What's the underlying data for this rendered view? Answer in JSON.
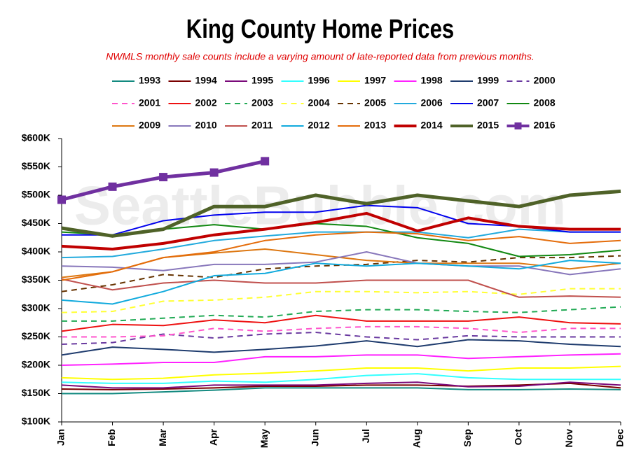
{
  "chart_data": {
    "type": "line",
    "title": "King County Home Prices",
    "subtitle": "NWMLS monthly sale counts include a varying amount of late-reported  data from previous months.",
    "watermark": "SeattleBubble.com",
    "categories": [
      "Jan",
      "Feb",
      "Mar",
      "Apr",
      "May",
      "Jun",
      "Jul",
      "Aug",
      "Sep",
      "Oct",
      "Nov",
      "Dec"
    ],
    "ylim": [
      100000,
      600000
    ],
    "yticks": [
      {
        "value": 100000,
        "label": "$100K"
      },
      {
        "value": 150000,
        "label": "$150K"
      },
      {
        "value": 200000,
        "label": "$200K"
      },
      {
        "value": 250000,
        "label": "$250K"
      },
      {
        "value": 300000,
        "label": "$300K"
      },
      {
        "value": 350000,
        "label": "$350K"
      },
      {
        "value": 400000,
        "label": "$400K"
      },
      {
        "value": 450000,
        "label": "$450K"
      },
      {
        "value": 500000,
        "label": "$500K"
      },
      {
        "value": 550000,
        "label": "$550K"
      },
      {
        "value": 600000,
        "label": "$600K"
      }
    ],
    "series": [
      {
        "name": "1993",
        "color": "#138a80",
        "values": [
          150000,
          150000,
          153000,
          156000,
          160000,
          160000,
          160000,
          160000,
          157000,
          157000,
          158000,
          157000
        ]
      },
      {
        "name": "1994",
        "color": "#7a0000",
        "values": [
          158000,
          157000,
          158000,
          160000,
          163000,
          163000,
          165000,
          165000,
          163000,
          165000,
          168000,
          160000
        ]
      },
      {
        "name": "1995",
        "color": "#7a0a7a",
        "values": [
          165000,
          160000,
          160000,
          165000,
          165000,
          165000,
          168000,
          170000,
          162000,
          163000,
          170000,
          165000
        ]
      },
      {
        "name": "1996",
        "color": "#33ffff",
        "values": [
          170000,
          168000,
          168000,
          172000,
          170000,
          175000,
          182000,
          185000,
          178000,
          175000,
          175000,
          175000
        ]
      },
      {
        "name": "1997",
        "color": "#ffff00",
        "values": [
          178000,
          175000,
          177000,
          183000,
          186000,
          190000,
          195000,
          195000,
          190000,
          195000,
          195000,
          198000
        ]
      },
      {
        "name": "1998",
        "color": "#ff22ff",
        "values": [
          200000,
          202000,
          205000,
          205000,
          215000,
          215000,
          218000,
          218000,
          212000,
          215000,
          218000,
          220000
        ]
      },
      {
        "name": "1999",
        "color": "#1f3c6e",
        "values": [
          218000,
          232000,
          228000,
          223000,
          228000,
          234000,
          243000,
          233000,
          245000,
          243000,
          237000,
          233000
        ]
      },
      {
        "name": "2000",
        "color": "#6a3aa0",
        "dashed": true,
        "values": [
          237000,
          240000,
          255000,
          248000,
          255000,
          258000,
          250000,
          245000,
          252000,
          250000,
          250000,
          250000
        ]
      },
      {
        "name": "2001",
        "color": "#ff55cc",
        "dashed": true,
        "values": [
          250000,
          250000,
          252000,
          265000,
          260000,
          265000,
          268000,
          268000,
          265000,
          258000,
          265000,
          265000
        ]
      },
      {
        "name": "2002",
        "color": "#ee1111",
        "values": [
          260000,
          272000,
          270000,
          280000,
          275000,
          288000,
          278000,
          278000,
          278000,
          285000,
          275000,
          273000
        ]
      },
      {
        "name": "2003",
        "color": "#22aa55",
        "dashed": true,
        "values": [
          278000,
          278000,
          283000,
          288000,
          285000,
          295000,
          298000,
          298000,
          295000,
          293000,
          298000,
          303000
        ]
      },
      {
        "name": "2004",
        "color": "#ffff33",
        "dashed": true,
        "values": [
          293000,
          295000,
          313000,
          315000,
          320000,
          330000,
          330000,
          328000,
          330000,
          325000,
          335000,
          335000
        ]
      },
      {
        "name": "2005",
        "color": "#663300",
        "dashed": true,
        "values": [
          330000,
          342000,
          360000,
          355000,
          370000,
          375000,
          378000,
          385000,
          382000,
          390000,
          390000,
          393000
        ]
      },
      {
        "name": "2006",
        "color": "#22aadd",
        "values": [
          390000,
          392000,
          405000,
          420000,
          428000,
          435000,
          435000,
          435000,
          425000,
          440000,
          435000,
          435000
        ]
      },
      {
        "name": "2007",
        "color": "#0000ee",
        "values": [
          430000,
          430000,
          455000,
          465000,
          470000,
          470000,
          482000,
          478000,
          450000,
          445000,
          435000,
          435000
        ]
      },
      {
        "name": "2008",
        "color": "#118811",
        "values": [
          435000,
          430000,
          440000,
          448000,
          440000,
          450000,
          445000,
          425000,
          415000,
          392000,
          395000,
          403000
        ]
      },
      {
        "name": "2009",
        "color": "#dd7711",
        "values": [
          355000,
          365000,
          390000,
          398000,
          405000,
          395000,
          385000,
          380000,
          380000,
          380000,
          370000,
          380000
        ]
      },
      {
        "name": "2010",
        "color": "#8877bb",
        "values": [
          375000,
          373000,
          367000,
          378000,
          378000,
          382000,
          400000,
          380000,
          375000,
          375000,
          360000,
          370000
        ]
      },
      {
        "name": "2011",
        "color": "#c0504d",
        "values": [
          352000,
          333000,
          345000,
          350000,
          345000,
          345000,
          350000,
          350000,
          350000,
          320000,
          322000,
          320000
        ]
      },
      {
        "name": "2012",
        "color": "#11aadd",
        "values": [
          315000,
          308000,
          330000,
          358000,
          362000,
          380000,
          375000,
          380000,
          375000,
          370000,
          385000,
          380000
        ]
      },
      {
        "name": "2013",
        "color": "#e46c0a",
        "values": [
          350000,
          365000,
          390000,
          400000,
          420000,
          430000,
          435000,
          432000,
          420000,
          427000,
          415000,
          420000
        ]
      },
      {
        "name": "2014",
        "color": "#c00000",
        "width": 4,
        "values": [
          410000,
          405000,
          415000,
          430000,
          440000,
          452000,
          468000,
          437000,
          460000,
          445000,
          440000,
          440000
        ]
      },
      {
        "name": "2015",
        "color": "#4f6228",
        "width": 5,
        "values": [
          442000,
          428000,
          440000,
          480000,
          480000,
          500000,
          485000,
          500000,
          490000,
          480000,
          500000,
          507000
        ]
      },
      {
        "name": "2016",
        "color": "#7030a0",
        "width": 5,
        "marker": "square",
        "values": [
          492000,
          515000,
          532000,
          540000,
          560000,
          null,
          null,
          null,
          null,
          null,
          null,
          null
        ]
      }
    ]
  }
}
